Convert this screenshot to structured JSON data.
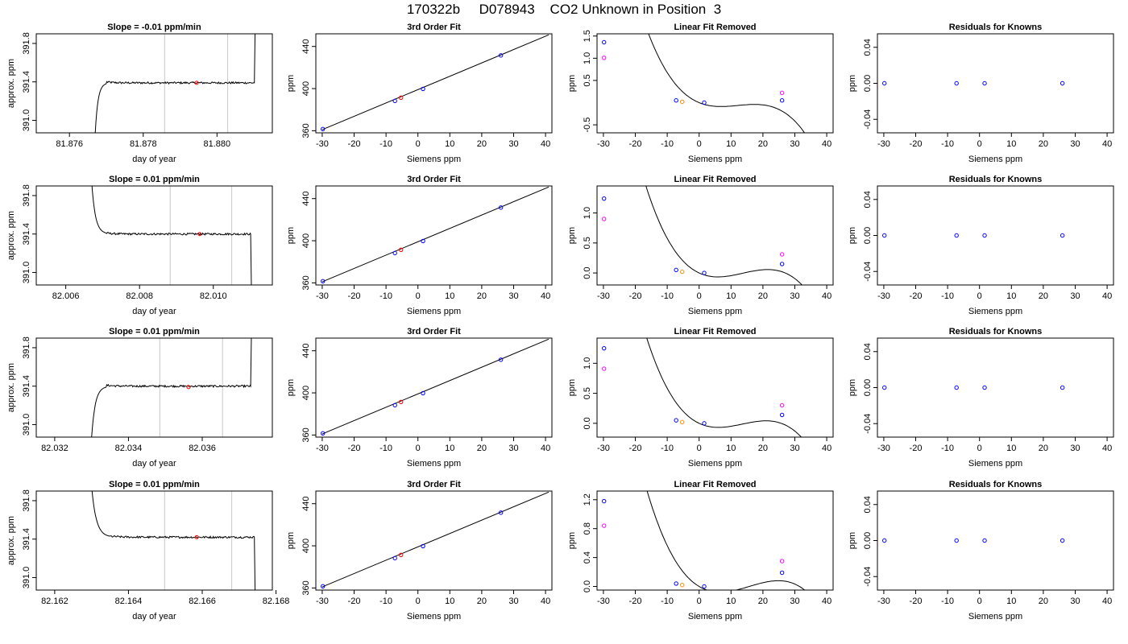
{
  "page": {
    "title": "170322b     D078943    CO2 Unknown in Position  3"
  },
  "colors": {
    "line": "#000000",
    "vline": "#c8c8c8",
    "red": "#ff0000",
    "blue": "#0000ff",
    "orange": "#ff8c00",
    "magenta": "#ff00ff"
  },
  "panel_text": {
    "slope_ylabel": "approx. ppm",
    "slope_xlabel": "day of year",
    "fit_title": "3rd Order Fit",
    "fit_ylabel": "ppm",
    "fit_xlabel": "Siemens ppm",
    "lin_title": "Linear Fit Removed",
    "lin_ylabel": "ppm",
    "lin_xlabel": "Siemens ppm",
    "res_title": "Residuals for Knowns",
    "res_ylabel": "ppm",
    "res_xlabel": "Siemens ppm"
  },
  "chart_data": [
    {
      "type": "line",
      "title": "Slope =  -0.01  ppm/min",
      "xlabel": "day of year",
      "ylabel": "approx. ppm",
      "xlim": [
        81.8751,
        81.8815
      ],
      "ylim": [
        390.87,
        391.9
      ],
      "xticks": [
        "81.876",
        "81.878",
        "81.880"
      ],
      "xtick_values": [
        81.876,
        81.878,
        81.88
      ],
      "yticks": [
        "391.0",
        "391.4",
        "391.8"
      ],
      "ytick_values": [
        391.0,
        391.4,
        391.8
      ],
      "trace": {
        "start": 81.8767,
        "rise_end": 81.877,
        "plateau_level": 391.39,
        "noise": 0.01,
        "end": 81.881,
        "end_direction": "up",
        "start_value": 390.87
      },
      "vlines": [
        81.87858,
        81.88029
      ],
      "point": {
        "x": 81.87945,
        "y": 391.39
      }
    },
    {
      "type": "scatter",
      "title": "3rd Order Fit",
      "xlabel": "Siemens ppm",
      "ylabel": "ppm",
      "xlim": [
        -32,
        42
      ],
      "ylim": [
        358,
        452
      ],
      "xticks": [
        "-30",
        "-20",
        "-10",
        "0",
        "10",
        "20",
        "30",
        "40"
      ],
      "xtick_values": [
        -30,
        -20,
        -10,
        0,
        10,
        20,
        30,
        40
      ],
      "yticks": [
        "360",
        "400",
        "440"
      ],
      "ytick_values": [
        360,
        400,
        440
      ],
      "fit_line": {
        "x": [
          -30,
          41
        ],
        "y": [
          361,
          451
        ]
      },
      "points": [
        {
          "x": -29.8,
          "y": 361.6,
          "color": "blue"
        },
        {
          "x": -7.2,
          "y": 388.3,
          "color": "blue"
        },
        {
          "x": 1.6,
          "y": 399.7,
          "color": "blue"
        },
        {
          "x": 26.0,
          "y": 431.5,
          "color": "blue"
        },
        {
          "x": -5.3,
          "y": 391.4,
          "color": "red"
        }
      ]
    },
    {
      "type": "scatter",
      "title": "Linear Fit Removed",
      "xlabel": "Siemens ppm",
      "ylabel": "ppm",
      "xlim": [
        -32,
        42
      ],
      "ylim": [
        -0.68,
        1.55
      ],
      "xticks": [
        "-30",
        "-20",
        "-10",
        "0",
        "10",
        "20",
        "30",
        "40"
      ],
      "xtick_values": [
        -30,
        -20,
        -10,
        0,
        10,
        20,
        30,
        40
      ],
      "yticks": [
        "-0.5",
        "0.5",
        "1.0",
        "1.5"
      ],
      "ytick_values": [
        -0.5,
        0.5,
        1.0,
        1.5
      ],
      "curve": {
        "a0": 0.0,
        "a1": -0.0295,
        "a2": 0.003,
        "a3": -8.26e-05,
        "x_from": -30,
        "x_to": 41
      },
      "points": [
        {
          "x": -29.8,
          "y": 1.36,
          "color": "blue"
        },
        {
          "x": -29.8,
          "y": 1.01,
          "color": "magenta"
        },
        {
          "x": -7.2,
          "y": 0.05,
          "color": "blue"
        },
        {
          "x": 1.6,
          "y": 0.0,
          "color": "blue"
        },
        {
          "x": 26.0,
          "y": 0.05,
          "color": "blue"
        },
        {
          "x": 26.0,
          "y": 0.22,
          "color": "magenta"
        },
        {
          "x": -5.3,
          "y": 0.02,
          "color": "orange"
        }
      ]
    },
    {
      "type": "scatter",
      "title": "Residuals for Knowns",
      "xlabel": "Siemens ppm",
      "ylabel": "ppm",
      "xlim": [
        -32,
        42
      ],
      "ylim": [
        -0.055,
        0.055
      ],
      "xticks": [
        "-30",
        "-20",
        "-10",
        "0",
        "10",
        "20",
        "30",
        "40"
      ],
      "xtick_values": [
        -30,
        -20,
        -10,
        0,
        10,
        20,
        30,
        40
      ],
      "yticks": [
        "-0.04",
        "0.00",
        "0.04"
      ],
      "ytick_values": [
        -0.04,
        0.0,
        0.04
      ],
      "points": [
        {
          "x": -29.8,
          "y": 0.0,
          "color": "blue"
        },
        {
          "x": -7.2,
          "y": 0.0,
          "color": "blue"
        },
        {
          "x": 1.6,
          "y": 0.0,
          "color": "blue"
        },
        {
          "x": 26.0,
          "y": 0.0,
          "color": "blue"
        }
      ]
    },
    {
      "type": "line",
      "title": "Slope =  0.01  ppm/min",
      "xlabel": "day of year",
      "ylabel": "approx. ppm",
      "xlim": [
        82.0052,
        82.0116
      ],
      "ylim": [
        390.87,
        391.9
      ],
      "xticks": [
        "82.006",
        "82.008",
        "82.010"
      ],
      "xtick_values": [
        82.006,
        82.008,
        82.01
      ],
      "yticks": [
        "391.0",
        "391.4",
        "391.8"
      ],
      "ytick_values": [
        391.0,
        391.4,
        391.8
      ],
      "trace": {
        "start": 82.0067,
        "rise_end": 82.0071,
        "plateau_level": 391.4,
        "noise": 0.01,
        "end": 82.011,
        "end_direction": "down",
        "start_value": 391.95
      },
      "vlines": [
        82.00883,
        82.0105
      ],
      "point": {
        "x": 82.00963,
        "y": 391.4
      }
    },
    {
      "type": "scatter",
      "title": "3rd Order Fit",
      "xlabel": "Siemens ppm",
      "ylabel": "ppm",
      "xlim": [
        -32,
        42
      ],
      "ylim": [
        358,
        452
      ],
      "xticks": [
        "-30",
        "-20",
        "-10",
        "0",
        "10",
        "20",
        "30",
        "40"
      ],
      "xtick_values": [
        -30,
        -20,
        -10,
        0,
        10,
        20,
        30,
        40
      ],
      "yticks": [
        "360",
        "400",
        "440"
      ],
      "ytick_values": [
        360,
        400,
        440
      ],
      "fit_line": {
        "x": [
          -30,
          41
        ],
        "y": [
          361,
          451
        ]
      },
      "points": [
        {
          "x": -29.8,
          "y": 361.6,
          "color": "blue"
        },
        {
          "x": -7.2,
          "y": 388.3,
          "color": "blue"
        },
        {
          "x": 1.6,
          "y": 399.7,
          "color": "blue"
        },
        {
          "x": 26.0,
          "y": 431.5,
          "color": "blue"
        },
        {
          "x": -5.3,
          "y": 391.4,
          "color": "red"
        }
      ]
    },
    {
      "type": "scatter",
      "title": "Linear Fit Removed",
      "xlabel": "Siemens ppm",
      "ylabel": "ppm",
      "xlim": [
        -32,
        42
      ],
      "ylim": [
        -0.2,
        1.45
      ],
      "xticks": [
        "-30",
        "-20",
        "-10",
        "0",
        "10",
        "20",
        "30",
        "40"
      ],
      "xtick_values": [
        -30,
        -20,
        -10,
        0,
        10,
        20,
        30,
        40
      ],
      "yticks": [
        "0.0",
        "0.5",
        "1.0"
      ],
      "ytick_values": [
        0.0,
        0.5,
        1.0
      ],
      "curve": {
        "a0": 0.0,
        "a1": -0.0246,
        "a2": 0.00266,
        "a3": -6.48e-05,
        "x_from": -30,
        "x_to": 41
      },
      "points": [
        {
          "x": -29.8,
          "y": 1.24,
          "color": "blue"
        },
        {
          "x": -29.8,
          "y": 0.9,
          "color": "magenta"
        },
        {
          "x": -7.2,
          "y": 0.05,
          "color": "blue"
        },
        {
          "x": 1.6,
          "y": 0.0,
          "color": "blue"
        },
        {
          "x": 26.0,
          "y": 0.15,
          "color": "blue"
        },
        {
          "x": 26.0,
          "y": 0.31,
          "color": "magenta"
        },
        {
          "x": -5.3,
          "y": 0.02,
          "color": "orange"
        }
      ]
    },
    {
      "type": "scatter",
      "title": "Residuals for Knowns",
      "xlabel": "Siemens ppm",
      "ylabel": "ppm",
      "xlim": [
        -32,
        42
      ],
      "ylim": [
        -0.055,
        0.055
      ],
      "xticks": [
        "-30",
        "-20",
        "-10",
        "0",
        "10",
        "20",
        "30",
        "40"
      ],
      "xtick_values": [
        -30,
        -20,
        -10,
        0,
        10,
        20,
        30,
        40
      ],
      "yticks": [
        "-0.04",
        "0.00",
        "0.04"
      ],
      "ytick_values": [
        -0.04,
        0.0,
        0.04
      ],
      "points": [
        {
          "x": -29.8,
          "y": 0.0,
          "color": "blue"
        },
        {
          "x": -7.2,
          "y": 0.0,
          "color": "blue"
        },
        {
          "x": 1.6,
          "y": 0.0,
          "color": "blue"
        },
        {
          "x": 26.0,
          "y": 0.0,
          "color": "blue"
        }
      ]
    },
    {
      "type": "line",
      "title": "Slope =  0.01  ppm/min",
      "xlabel": "day of year",
      "ylabel": "approx. ppm",
      "xlim": [
        82.0315,
        82.0379
      ],
      "ylim": [
        390.87,
        391.9
      ],
      "xticks": [
        "82.032",
        "82.034",
        "82.036"
      ],
      "xtick_values": [
        82.032,
        82.034,
        82.036
      ],
      "yticks": [
        "391.0",
        "391.4",
        "391.8"
      ],
      "ytick_values": [
        391.0,
        391.4,
        391.8
      ],
      "trace": {
        "start": 82.033,
        "rise_end": 82.0334,
        "plateau_level": 391.4,
        "noise": 0.01,
        "end": 82.0373,
        "end_direction": "up",
        "start_value": 390.87
      },
      "vlines": [
        82.03485,
        82.03655
      ],
      "point": {
        "x": 82.03563,
        "y": 391.39
      }
    },
    {
      "type": "scatter",
      "title": "3rd Order Fit",
      "xlabel": "Siemens ppm",
      "ylabel": "ppm",
      "xlim": [
        -32,
        42
      ],
      "ylim": [
        358,
        452
      ],
      "xticks": [
        "-30",
        "-20",
        "-10",
        "0",
        "10",
        "20",
        "30",
        "40"
      ],
      "xtick_values": [
        -30,
        -20,
        -10,
        0,
        10,
        20,
        30,
        40
      ],
      "yticks": [
        "360",
        "400",
        "440"
      ],
      "ytick_values": [
        360,
        400,
        440
      ],
      "fit_line": {
        "x": [
          -30,
          41
        ],
        "y": [
          361,
          451
        ]
      },
      "points": [
        {
          "x": -29.8,
          "y": 361.6,
          "color": "blue"
        },
        {
          "x": -7.2,
          "y": 388.3,
          "color": "blue"
        },
        {
          "x": 1.6,
          "y": 399.7,
          "color": "blue"
        },
        {
          "x": 26.0,
          "y": 431.5,
          "color": "blue"
        },
        {
          "x": -5.3,
          "y": 391.4,
          "color": "red"
        }
      ]
    },
    {
      "type": "scatter",
      "title": "Linear Fit Removed",
      "xlabel": "Siemens ppm",
      "ylabel": "ppm",
      "xlim": [
        -32,
        42
      ],
      "ylim": [
        -0.23,
        1.42
      ],
      "xticks": [
        "-30",
        "-20",
        "-10",
        "0",
        "10",
        "20",
        "30",
        "40"
      ],
      "xtick_values": [
        -30,
        -20,
        -10,
        0,
        10,
        20,
        30,
        40
      ],
      "yticks": [
        "0.0",
        "0.5",
        "1.0"
      ],
      "ytick_values": [
        0.0,
        0.5,
        1.0
      ],
      "curve": {
        "a0": 0.0,
        "a1": -0.025,
        "a2": 0.00267,
        "a3": -6.6e-05,
        "x_from": -30,
        "x_to": 41
      },
      "points": [
        {
          "x": -29.8,
          "y": 1.25,
          "color": "blue"
        },
        {
          "x": -29.8,
          "y": 0.91,
          "color": "magenta"
        },
        {
          "x": -7.2,
          "y": 0.05,
          "color": "blue"
        },
        {
          "x": 1.6,
          "y": 0.0,
          "color": "blue"
        },
        {
          "x": 26.0,
          "y": 0.14,
          "color": "blue"
        },
        {
          "x": 26.0,
          "y": 0.3,
          "color": "magenta"
        },
        {
          "x": -5.3,
          "y": 0.02,
          "color": "orange"
        }
      ]
    },
    {
      "type": "scatter",
      "title": "Residuals for Knowns",
      "xlabel": "Siemens ppm",
      "ylabel": "ppm",
      "xlim": [
        -32,
        42
      ],
      "ylim": [
        -0.055,
        0.055
      ],
      "xticks": [
        "-30",
        "-20",
        "-10",
        "0",
        "10",
        "20",
        "30",
        "40"
      ],
      "xtick_values": [
        -30,
        -20,
        -10,
        0,
        10,
        20,
        30,
        40
      ],
      "yticks": [
        "-0.04",
        "0.00",
        "0.04"
      ],
      "ytick_values": [
        -0.04,
        0.0,
        0.04
      ],
      "points": [
        {
          "x": -29.8,
          "y": 0.0,
          "color": "blue"
        },
        {
          "x": -7.2,
          "y": 0.0,
          "color": "blue"
        },
        {
          "x": 1.6,
          "y": 0.0,
          "color": "blue"
        },
        {
          "x": 26.0,
          "y": 0.0,
          "color": "blue"
        }
      ]
    },
    {
      "type": "line",
      "title": "Slope =  0.01  ppm/min",
      "xlabel": "day of year",
      "ylabel": "approx. ppm",
      "xlim": [
        82.1615,
        82.1679
      ],
      "ylim": [
        390.87,
        391.9
      ],
      "xticks": [
        "82.162",
        "82.164",
        "82.166",
        "82.168"
      ],
      "xtick_values": [
        82.162,
        82.164,
        82.166,
        82.168
      ],
      "yticks": [
        "391.0",
        "391.4",
        "391.8"
      ],
      "ytick_values": [
        391.0,
        391.4,
        391.8
      ],
      "trace": {
        "start": 82.163,
        "rise_end": 82.1635,
        "plateau_level": 391.42,
        "noise": 0.01,
        "end": 82.1674,
        "end_direction": "down",
        "start_value": 391.95
      },
      "vlines": [
        82.16498,
        82.1668
      ],
      "point": {
        "x": 82.16585,
        "y": 391.42
      }
    },
    {
      "type": "scatter",
      "title": "3rd Order Fit",
      "xlabel": "Siemens ppm",
      "ylabel": "ppm",
      "xlim": [
        -32,
        42
      ],
      "ylim": [
        358,
        452
      ],
      "xticks": [
        "-30",
        "-20",
        "-10",
        "0",
        "10",
        "20",
        "30",
        "40"
      ],
      "xtick_values": [
        -30,
        -20,
        -10,
        0,
        10,
        20,
        30,
        40
      ],
      "yticks": [
        "360",
        "400",
        "440"
      ],
      "ytick_values": [
        360,
        400,
        440
      ],
      "fit_line": {
        "x": [
          -30,
          41
        ],
        "y": [
          361,
          451
        ]
      },
      "points": [
        {
          "x": -29.8,
          "y": 361.6,
          "color": "blue"
        },
        {
          "x": -7.2,
          "y": 388.3,
          "color": "blue"
        },
        {
          "x": 1.6,
          "y": 399.7,
          "color": "blue"
        },
        {
          "x": 26.0,
          "y": 431.5,
          "color": "blue"
        },
        {
          "x": -5.3,
          "y": 391.4,
          "color": "red"
        }
      ]
    },
    {
      "type": "scatter",
      "title": "Linear Fit Removed",
      "xlabel": "Siemens ppm",
      "ylabel": "ppm",
      "xlim": [
        -32,
        42
      ],
      "ylim": [
        -0.05,
        1.32
      ],
      "xticks": [
        "-30",
        "-20",
        "-10",
        "0",
        "10",
        "20",
        "30",
        "40"
      ],
      "xtick_values": [
        -30,
        -20,
        -10,
        0,
        10,
        20,
        30,
        40
      ],
      "yticks": [
        "0.0",
        "0.4",
        "0.8",
        "1.2"
      ],
      "ytick_values": [
        0.0,
        0.4,
        0.8,
        1.2
      ],
      "curve": {
        "a0": 0.0,
        "a1": -0.0262,
        "a2": 0.0025,
        "a3": -5.3e-05,
        "x_from": -30,
        "x_to": 41
      },
      "points": [
        {
          "x": -29.8,
          "y": 1.18,
          "color": "blue"
        },
        {
          "x": -29.8,
          "y": 0.84,
          "color": "magenta"
        },
        {
          "x": -7.2,
          "y": 0.04,
          "color": "blue"
        },
        {
          "x": 1.6,
          "y": 0.0,
          "color": "blue"
        },
        {
          "x": 26.0,
          "y": 0.19,
          "color": "blue"
        },
        {
          "x": 26.0,
          "y": 0.35,
          "color": "magenta"
        },
        {
          "x": -5.3,
          "y": 0.02,
          "color": "orange"
        }
      ]
    },
    {
      "type": "scatter",
      "title": "Residuals for Knowns",
      "xlabel": "Siemens ppm",
      "ylabel": "ppm",
      "xlim": [
        -32,
        42
      ],
      "ylim": [
        -0.055,
        0.055
      ],
      "xticks": [
        "-30",
        "-20",
        "-10",
        "0",
        "10",
        "20",
        "30",
        "40"
      ],
      "xtick_values": [
        -30,
        -20,
        -10,
        0,
        10,
        20,
        30,
        40
      ],
      "yticks": [
        "-0.04",
        "0.00",
        "0.04"
      ],
      "ytick_values": [
        -0.04,
        0.0,
        0.04
      ],
      "points": [
        {
          "x": -29.8,
          "y": 0.0,
          "color": "blue"
        },
        {
          "x": -7.2,
          "y": 0.0,
          "color": "blue"
        },
        {
          "x": 1.6,
          "y": 0.0,
          "color": "blue"
        },
        {
          "x": 26.0,
          "y": 0.0,
          "color": "blue"
        }
      ]
    }
  ]
}
